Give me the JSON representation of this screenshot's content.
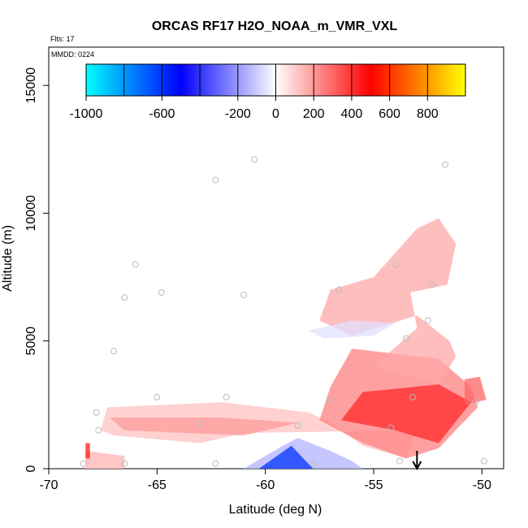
{
  "chart_data": {
    "type": "heatmap",
    "title": "ORCAS RF17 H2O_NOAA_m_VMR_VXL",
    "flights_note": "Flts: 17",
    "date_note": "MMDD: 0224",
    "xlabel": "Latitude (deg N)",
    "ylabel": "Altitude (m)",
    "xlim": [
      -70,
      -49
    ],
    "ylim": [
      0,
      16500
    ],
    "x_ticks": [
      "-70",
      "-65",
      "-60",
      "-55",
      "-50"
    ],
    "y_ticks": [
      "0",
      "5000",
      "10000",
      "15000"
    ],
    "colorbar": {
      "range": [
        -1000,
        1000
      ],
      "tick_labels": [
        "-1000",
        "-600",
        "-200",
        "0",
        "200",
        "400",
        "600",
        "800"
      ],
      "tick_values": [
        -1000,
        -600,
        -200,
        0,
        200,
        400,
        600,
        800
      ],
      "colors": [
        "#00ffff",
        "#0000ff",
        "#ffffff",
        "#ff0000",
        "#ffff00"
      ]
    },
    "anomaly_regions": [
      {
        "value": 150,
        "points": [
          [
            -68.3,
            0
          ],
          [
            -68.3,
            700
          ],
          [
            -66.5,
            500
          ],
          [
            -66.5,
            0
          ]
        ]
      },
      {
        "value": 120,
        "points": [
          [
            -67.6,
            1500
          ],
          [
            -67.3,
            2400
          ],
          [
            -62,
            2600
          ],
          [
            -58,
            2200
          ],
          [
            -57,
            1800
          ],
          [
            -55.5,
            900
          ],
          [
            -53.5,
            400
          ],
          [
            -53,
            1500
          ],
          [
            -61,
            1400
          ],
          [
            -63,
            1000
          ],
          [
            -67,
            1300
          ]
        ]
      },
      {
        "value": 200,
        "points": [
          [
            -67.2,
            2000
          ],
          [
            -62,
            2000
          ],
          [
            -58.5,
            1800
          ],
          [
            -61,
            1300
          ],
          [
            -66.5,
            1500
          ]
        ]
      },
      {
        "value": 250,
        "points": [
          [
            -57.5,
            1900
          ],
          [
            -57,
            3200
          ],
          [
            -56,
            4700
          ],
          [
            -52,
            4300
          ],
          [
            -50.5,
            3200
          ],
          [
            -50.2,
            2400
          ],
          [
            -52,
            800
          ],
          [
            -53.5,
            400
          ],
          [
            -55.5,
            1000
          ]
        ]
      },
      {
        "value": 420,
        "points": [
          [
            -56.5,
            1900
          ],
          [
            -55.5,
            3000
          ],
          [
            -52,
            3300
          ],
          [
            -50.5,
            2600
          ],
          [
            -52,
            1000
          ],
          [
            -54,
            1500
          ]
        ]
      },
      {
        "value": 170,
        "points": [
          [
            -55,
            4000
          ],
          [
            -53,
            5500
          ],
          [
            -53.3,
            6900
          ],
          [
            -51.6,
            7200
          ],
          [
            -51.2,
            8800
          ],
          [
            -52,
            9800
          ],
          [
            -53,
            9400
          ],
          [
            -55,
            7500
          ],
          [
            -57,
            7000
          ],
          [
            -57.5,
            5800
          ],
          [
            -56,
            5200
          ],
          [
            -53,
            6000
          ],
          [
            -51.5,
            5000
          ],
          [
            -51.2,
            4400
          ],
          [
            -52,
            3300
          ]
        ]
      },
      {
        "value": 300,
        "points": [
          [
            -50.8,
            3500
          ],
          [
            -50.1,
            3600
          ],
          [
            -49.8,
            2700
          ],
          [
            -50.8,
            2500
          ]
        ]
      },
      {
        "value": -60,
        "points": [
          [
            -58,
            5400
          ],
          [
            -56,
            5800
          ],
          [
            -54,
            5700
          ],
          [
            -55,
            5200
          ],
          [
            -57.3,
            5100
          ]
        ]
      },
      {
        "value": -150,
        "points": [
          [
            -61,
            0
          ],
          [
            -59.2,
            900
          ],
          [
            -58.5,
            1200
          ],
          [
            -57,
            700
          ],
          [
            -56,
            300
          ],
          [
            -55.5,
            0
          ]
        ]
      },
      {
        "value": -600,
        "points": [
          [
            -60.3,
            0
          ],
          [
            -58.8,
            900
          ],
          [
            -57.8,
            0
          ]
        ]
      },
      {
        "value": 450,
        "points": [
          [
            -68.3,
            400
          ],
          [
            -68.3,
            1000
          ],
          [
            -68.1,
            1000
          ],
          [
            -68.1,
            400
          ]
        ]
      }
    ],
    "sample_points": [
      [
        -68.4,
        200
      ],
      [
        -67.8,
        2200
      ],
      [
        -67.7,
        1500
      ],
      [
        -66.5,
        200
      ],
      [
        -67.0,
        4600
      ],
      [
        -66.5,
        6700
      ],
      [
        -66.0,
        8000
      ],
      [
        -64.8,
        6900
      ],
      [
        -65.0,
        2800
      ],
      [
        -63.0,
        1800
      ],
      [
        -62.3,
        11300
      ],
      [
        -62.3,
        200
      ],
      [
        -61.8,
        2800
      ],
      [
        -61.0,
        6800
      ],
      [
        -60.5,
        12100
      ],
      [
        -58.5,
        1700
      ],
      [
        -57.8,
        200
      ],
      [
        -57.0,
        2700
      ],
      [
        -56.6,
        7000
      ],
      [
        -54.0,
        8000
      ],
      [
        -53.5,
        5100
      ],
      [
        -54.2,
        1600
      ],
      [
        -53.2,
        2800
      ],
      [
        -53.8,
        300
      ],
      [
        -52.5,
        5800
      ],
      [
        -52.3,
        7200
      ],
      [
        -51.7,
        11900
      ],
      [
        -50.3,
        2600
      ],
      [
        -49.9,
        300
      ]
    ],
    "arrow": {
      "x": -53,
      "y_top": 700,
      "y_bottom": 0
    }
  }
}
